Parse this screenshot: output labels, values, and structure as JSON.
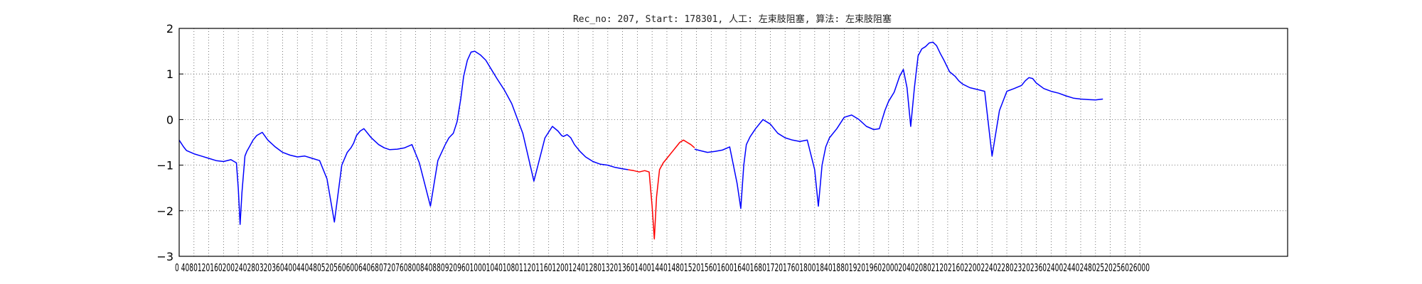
{
  "chart_data": {
    "type": "line",
    "title": "Rec_no: 207, Start: 178301, 人工: 左束肢阻塞, 算法: 左束肢阻塞",
    "xlabel": "",
    "ylabel": "",
    "xlim": [
      0,
      3000
    ],
    "ylim": [
      -3,
      2
    ],
    "yticks": [
      2,
      1,
      0,
      -1,
      -2,
      -3
    ],
    "xticks": [
      0,
      40,
      80,
      120,
      160,
      200,
      240,
      280,
      320,
      360,
      400,
      440,
      480,
      520,
      560,
      600,
      640,
      680,
      720,
      760,
      800,
      840,
      880,
      920,
      960,
      1000,
      1040,
      1080,
      1120,
      1160,
      1200,
      1240,
      1280,
      1320,
      1360,
      1400,
      1440,
      1480,
      1520,
      1560,
      1600,
      1640,
      1680,
      1720,
      1760,
      1800,
      1840,
      1880,
      1920,
      1960,
      2000,
      2040,
      2080,
      2120,
      2160,
      2200,
      2240,
      2280,
      2320,
      2360,
      2400,
      2440,
      2480,
      2520,
      2560,
      2600
    ],
    "x_tick_labels_text": "0 4080120160200240280320360400440480520560600640680720760800840880920960100010401080112011601200124012801320136014001440148015201560160016401680172017601800184018801920196020002040208021202160220022402280232023602400244024802520256026000",
    "grid": true,
    "grid_style": "dotted",
    "series": [
      {
        "color": "#0000ff",
        "x": [
          0,
          12,
          20,
          40,
          60,
          80,
          100,
          120,
          140,
          155,
          160,
          165,
          170,
          178,
          183,
          190,
          200,
          210,
          225,
          240,
          260,
          280,
          300,
          320,
          340,
          360,
          380,
          400,
          420,
          440,
          455,
          465,
          472,
          480,
          490,
          500,
          520,
          540,
          555,
          570,
          590,
          610,
          630,
          650,
          680,
          700,
          720,
          730,
          742,
          752,
          762,
          770,
          780,
          790,
          800,
          815,
          830,
          845,
          860,
          880,
          900,
          930,
          960,
          990,
          1010,
          1025,
          1035,
          1040,
          1050,
          1060,
          1070,
          1085,
          1100,
          1120,
          1140,
          1160,
          1180,
          1200,
          1215
        ],
        "y": [
          -0.45,
          -0.6,
          -0.68,
          -0.75,
          -0.8,
          -0.85,
          -0.9,
          -0.92,
          -0.88,
          -0.95,
          -1.5,
          -2.3,
          -1.6,
          -0.8,
          -0.7,
          -0.6,
          -0.45,
          -0.35,
          -0.28,
          -0.45,
          -0.6,
          -0.72,
          -0.78,
          -0.82,
          -0.8,
          -0.85,
          -0.9,
          -1.3,
          -2.25,
          -1.0,
          -0.72,
          -0.62,
          -0.52,
          -0.35,
          -0.25,
          -0.2,
          -0.4,
          -0.55,
          -0.62,
          -0.66,
          -0.65,
          -0.62,
          -0.55,
          -0.95,
          -1.9,
          -0.9,
          -0.55,
          -0.4,
          -0.3,
          -0.05,
          0.45,
          0.95,
          1.3,
          1.48,
          1.5,
          1.42,
          1.3,
          1.1,
          0.9,
          0.65,
          0.35,
          -0.3,
          -1.35,
          -0.4,
          -0.15,
          -0.25,
          -0.35,
          -0.37,
          -0.33,
          -0.4,
          -0.55,
          -0.7,
          -0.82,
          -0.92,
          -0.98,
          -1.0,
          -1.05,
          -1.08,
          -1.1
        ]
      },
      {
        "color": "#ff0000",
        "x": [
          1215,
          1230,
          1245,
          1260,
          1272,
          1280,
          1286,
          1292,
          1300,
          1310,
          1320,
          1335,
          1345,
          1355,
          1365,
          1375,
          1385,
          1395
        ],
        "y": [
          -1.1,
          -1.12,
          -1.15,
          -1.12,
          -1.15,
          -1.9,
          -2.62,
          -1.7,
          -1.1,
          -0.95,
          -0.85,
          -0.7,
          -0.6,
          -0.5,
          -0.45,
          -0.5,
          -0.55,
          -0.62
        ]
      },
      {
        "color": "#0000ff",
        "x": [
          1395,
          1410,
          1430,
          1450,
          1470,
          1490,
          1510,
          1520,
          1528,
          1535,
          1545,
          1560,
          1580,
          1600,
          1620,
          1640,
          1660,
          1680,
          1700,
          1720,
          1730,
          1740,
          1750,
          1760,
          1780,
          1800,
          1820,
          1840,
          1860,
          1880,
          1895,
          1910,
          1920,
          1935,
          1950,
          1960,
          1970,
          1980,
          1990,
          2000,
          2010,
          2020,
          2030,
          2040,
          2050,
          2060,
          2070,
          2085,
          2100,
          2110,
          2120,
          2140,
          2160,
          2180,
          2200,
          2220,
          2240,
          2260,
          2280,
          2290,
          2300,
          2310,
          2320,
          2340,
          2360,
          2380,
          2400,
          2420,
          2440,
          2460,
          2480,
          2500
        ],
        "y": [
          -0.65,
          -0.68,
          -0.72,
          -0.7,
          -0.67,
          -0.6,
          -1.4,
          -1.95,
          -1.0,
          -0.55,
          -0.38,
          -0.2,
          0.0,
          -0.1,
          -0.3,
          -0.4,
          -0.45,
          -0.48,
          -0.45,
          -1.1,
          -1.9,
          -1.0,
          -0.6,
          -0.4,
          -0.2,
          0.05,
          0.1,
          0.0,
          -0.15,
          -0.22,
          -0.2,
          0.2,
          0.4,
          0.6,
          0.95,
          1.1,
          0.7,
          -0.15,
          0.7,
          1.4,
          1.55,
          1.6,
          1.68,
          1.7,
          1.62,
          1.45,
          1.3,
          1.05,
          0.95,
          0.85,
          0.78,
          0.7,
          0.66,
          0.62,
          -0.8,
          0.2,
          0.62,
          0.68,
          0.75,
          0.85,
          0.92,
          0.9,
          0.8,
          0.68,
          0.62,
          0.58,
          0.52,
          0.47,
          0.45,
          0.44,
          0.43,
          0.45
        ]
      }
    ]
  }
}
